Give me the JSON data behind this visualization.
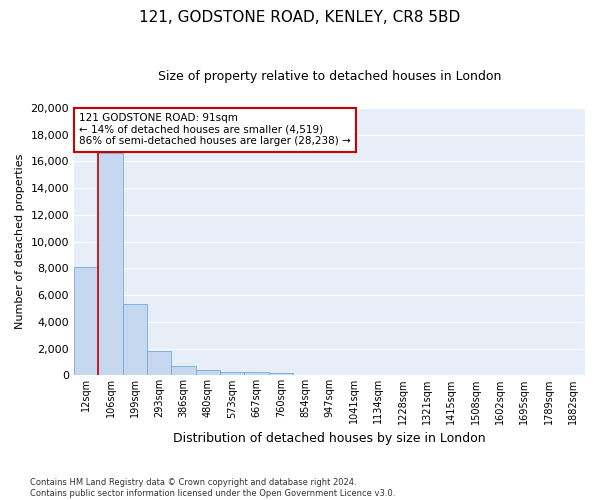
{
  "title": "121, GODSTONE ROAD, KENLEY, CR8 5BD",
  "subtitle": "Size of property relative to detached houses in London",
  "xlabel": "Distribution of detached houses by size in London",
  "ylabel": "Number of detached properties",
  "categories": [
    "12sqm",
    "106sqm",
    "199sqm",
    "293sqm",
    "386sqm",
    "480sqm",
    "573sqm",
    "667sqm",
    "760sqm",
    "854sqm",
    "947sqm",
    "1041sqm",
    "1134sqm",
    "1228sqm",
    "1321sqm",
    "1415sqm",
    "1508sqm",
    "1602sqm",
    "1695sqm",
    "1789sqm",
    "1882sqm"
  ],
  "values": [
    8100,
    16600,
    5300,
    1850,
    680,
    370,
    280,
    230,
    200,
    0,
    0,
    0,
    0,
    0,
    0,
    0,
    0,
    0,
    0,
    0,
    0
  ],
  "bar_color": "#c5d8f0",
  "bar_edge_color": "#6baed6",
  "vline_x": 0.5,
  "vline_color": "#cc0000",
  "annotation_text": "121 GODSTONE ROAD: 91sqm\n← 14% of detached houses are smaller (4,519)\n86% of semi-detached houses are larger (28,238) →",
  "annotation_box_color": "#ffffff",
  "annotation_box_edge": "#cc0000",
  "ylim": [
    0,
    20000
  ],
  "yticks": [
    0,
    2000,
    4000,
    6000,
    8000,
    10000,
    12000,
    14000,
    16000,
    18000,
    20000
  ],
  "footer": "Contains HM Land Registry data © Crown copyright and database right 2024.\nContains public sector information licensed under the Open Government Licence v3.0.",
  "plot_bg_color": "#e8eef8",
  "fig_bg_color": "#ffffff",
  "grid_color": "#ffffff",
  "title_fontsize": 11,
  "subtitle_fontsize": 9,
  "tick_fontsize": 7,
  "ylabel_fontsize": 8,
  "xlabel_fontsize": 9
}
